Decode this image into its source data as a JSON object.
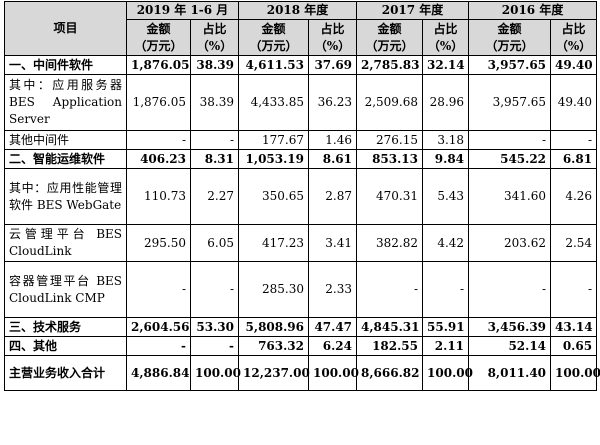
{
  "header": {
    "item": "项目",
    "periods": [
      "2019 年 1-6 月",
      "2018 年度",
      "2017 年度",
      "2016 年度"
    ],
    "amount": "金额（万元）",
    "amount_l1": "金额",
    "amount_l2": "（万元）",
    "ratio_l1": "占比",
    "ratio_l2": "（%）"
  },
  "rows": [
    {
      "label": "一、中间件软件",
      "bold": true,
      "values": [
        "1,876.05",
        "38.39",
        "4,611.53",
        "37.69",
        "2,785.83",
        "32.14",
        "3,957.65",
        "49.40"
      ]
    },
    {
      "label": "其中：应用服务器 BES Application Server",
      "bold": false,
      "values": [
        "1,876.05",
        "38.39",
        "4,433.85",
        "36.23",
        "2,509.68",
        "28.96",
        "3,957.65",
        "49.40"
      ]
    },
    {
      "label": "其他中间件",
      "bold": false,
      "values": [
        "-",
        "-",
        "177.67",
        "1.46",
        "276.15",
        "3.18",
        "-",
        "-"
      ]
    },
    {
      "label": "二、智能运维软件",
      "bold": true,
      "values": [
        "406.23",
        "8.31",
        "1,053.19",
        "8.61",
        "853.13",
        "9.84",
        "545.22",
        "6.81"
      ]
    },
    {
      "label": "其中：应用性能管理软件 BES WebGate",
      "bold": false,
      "values": [
        "110.73",
        "2.27",
        "350.65",
        "2.87",
        "470.31",
        "5.43",
        "341.60",
        "4.26"
      ]
    },
    {
      "label": "云管理平台 BES CloudLink",
      "bold": false,
      "values": [
        "295.50",
        "6.05",
        "417.23",
        "3.41",
        "382.82",
        "4.42",
        "203.62",
        "2.54"
      ]
    },
    {
      "label": "容器管理平台 BES CloudLink CMP",
      "bold": false,
      "values": [
        "-",
        "-",
        "285.30",
        "2.33",
        "-",
        "-",
        "-",
        "-"
      ]
    },
    {
      "label": "三、技术服务",
      "bold": true,
      "values": [
        "2,604.56",
        "53.30",
        "5,808.96",
        "47.47",
        "4,845.31",
        "55.91",
        "3,456.39",
        "43.14"
      ]
    },
    {
      "label": "四、其他",
      "bold": true,
      "values": [
        "-",
        "-",
        "763.32",
        "6.24",
        "182.55",
        "2.11",
        "52.14",
        "0.65"
      ]
    },
    {
      "label": "主营业务收入合计",
      "bold": true,
      "values": [
        "4,886.84",
        "100.00",
        "12,237.00",
        "100.00",
        "8,666.82",
        "100.00",
        "8,011.40",
        "100.00"
      ]
    }
  ]
}
